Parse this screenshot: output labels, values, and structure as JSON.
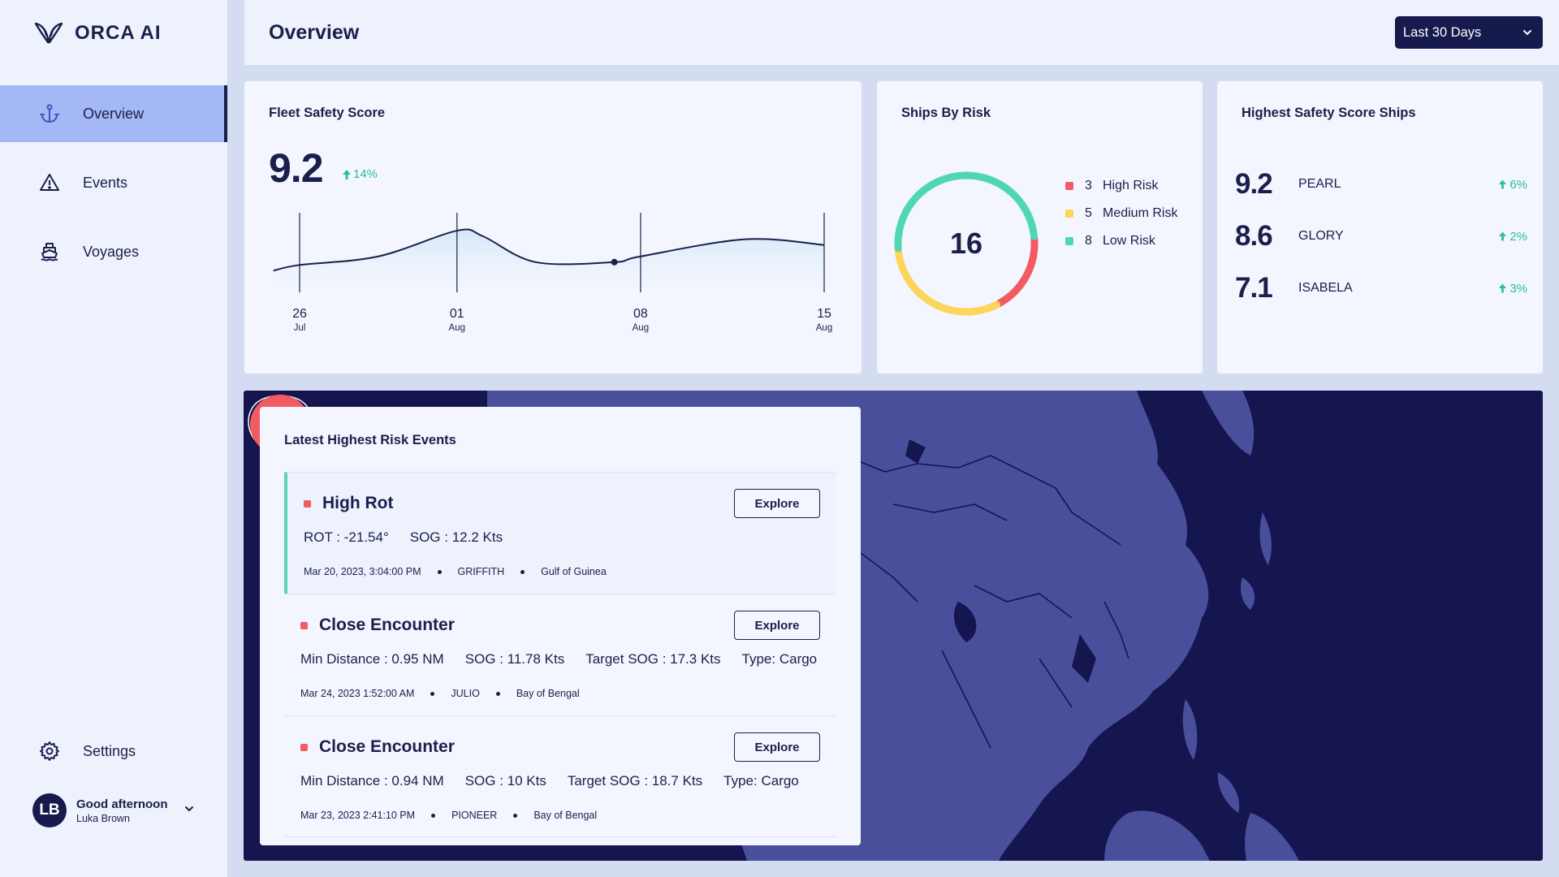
{
  "brand": {
    "name": "ORCA AI",
    "icon": "orca-logo-icon"
  },
  "sidebar": {
    "items": [
      {
        "label": "Overview",
        "icon": "anchor-icon",
        "active": true
      },
      {
        "label": "Events",
        "icon": "warning-icon",
        "active": false
      },
      {
        "label": "Voyages",
        "icon": "ship-icon",
        "active": false
      }
    ],
    "settings_label": "Settings"
  },
  "user": {
    "initials": "LB",
    "greeting": "Good afternoon",
    "name": "Luka Brown"
  },
  "header": {
    "title": "Overview",
    "date_range": "Last 30 Days"
  },
  "fleet_safety": {
    "title": "Fleet Safety Score",
    "score": "9.2",
    "change": "14%",
    "x_ticks": [
      {
        "day": "26",
        "month": "Jul"
      },
      {
        "day": "01",
        "month": "Aug"
      },
      {
        "day": "08",
        "month": "Aug"
      },
      {
        "day": "15",
        "month": "Aug"
      }
    ]
  },
  "chart_data": {
    "type": "area",
    "title": "Fleet Safety Score",
    "x": [
      "Jul 25",
      "Jul 26",
      "Jul 29",
      "Aug 01",
      "Aug 02",
      "Aug 04",
      "Aug 07",
      "Aug 08",
      "Aug 12",
      "Aug 15"
    ],
    "values": [
      8.2,
      8.4,
      8.7,
      9.6,
      9.4,
      8.5,
      8.5,
      8.7,
      9.3,
      9.1
    ],
    "ylim": [
      7.5,
      10
    ],
    "highlighted_point": "Aug 07"
  },
  "ships_by_risk": {
    "title": "Ships By Risk",
    "total": "16",
    "segments": [
      {
        "count": "3",
        "label": "High Risk",
        "color": "#f25b62"
      },
      {
        "count": "5",
        "label": "Medium Risk",
        "color": "#fcd55a"
      },
      {
        "count": "8",
        "label": "Low Risk",
        "color": "#4fd8b0"
      }
    ]
  },
  "highest_ships": {
    "title": "Highest Safety Score Ships",
    "ships": [
      {
        "score": "9.2",
        "name": "PEARL",
        "change": "6%"
      },
      {
        "score": "8.6",
        "name": "GLORY",
        "change": "2%"
      },
      {
        "score": "7.1",
        "name": "ISABELA",
        "change": "3%"
      }
    ]
  },
  "events": {
    "title": "Latest Highest Risk Events",
    "explore_label": "Explore",
    "items": [
      {
        "type": "High Rot",
        "metrics": [
          "ROT : -21.54°",
          "SOG : 12.2 Kts"
        ],
        "datetime": "Mar 20, 2023, 3:04:00 PM",
        "ship": "GRIFFITH",
        "location": "Gulf of Guinea"
      },
      {
        "type": "Close Encounter",
        "metrics": [
          "Min Distance : 0.95 NM",
          "SOG : 11.78 Kts",
          "Target SOG : 17.3 Kts",
          "Type: Cargo"
        ],
        "datetime": "Mar 24, 2023 1:52:00 AM",
        "ship": "JULIO",
        "location": "Bay of Bengal"
      },
      {
        "type": "Close Encounter",
        "metrics": [
          "Min Distance : 0.94 NM",
          "SOG : 10 Kts",
          "Target SOG : 18.7 Kts",
          "Type: Cargo"
        ],
        "datetime": "Mar 23, 2023 2:41:10 PM",
        "ship": "PIONEER",
        "location": "Bay of Bengal"
      }
    ]
  },
  "map": {
    "marker_icon": "route-pin-icon"
  },
  "colors": {
    "navy": "#161a4d",
    "accent": "#a3b8f5",
    "positive": "#2dbf94",
    "danger": "#f25b62"
  }
}
